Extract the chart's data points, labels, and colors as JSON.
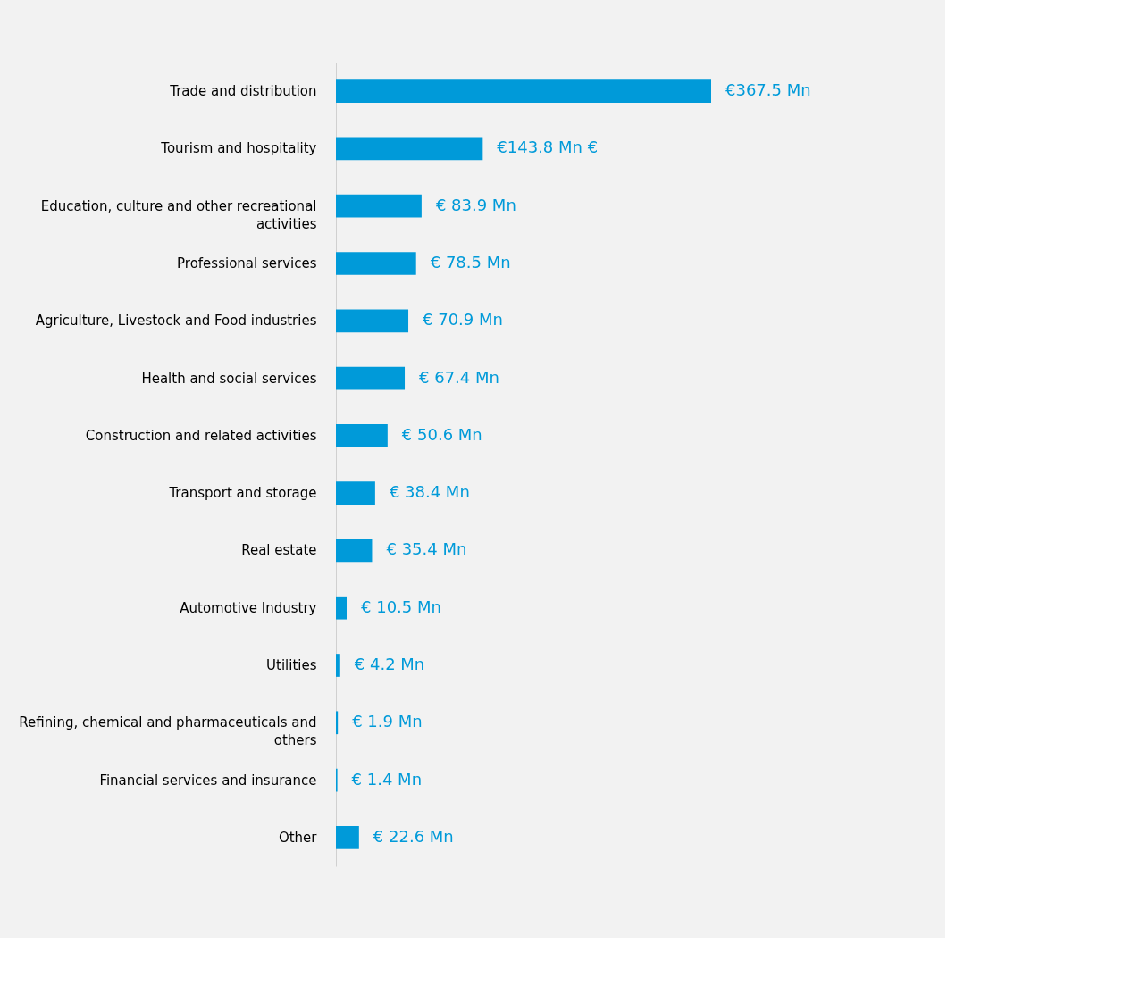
{
  "chart_data": {
    "type": "bar",
    "orientation": "horizontal",
    "color": "#009ad9",
    "categories": [
      "Trade and distribution",
      "Tourism and hospitality",
      "Education, culture and other recreational activities",
      "Professional services",
      "Agriculture, Livestock and Food industries",
      "Health and social services",
      "Construction and related activities",
      "Transport and storage",
      "Real estate",
      "Automotive Industry",
      "Utilities",
      "Refining, chemical and pharmaceuticals and others",
      "Financial services and insurance",
      "Other"
    ],
    "values": [
      367.5,
      143.8,
      83.9,
      78.5,
      70.9,
      67.4,
      50.6,
      38.4,
      35.4,
      10.5,
      4.2,
      1.9,
      1.4,
      22.6
    ],
    "value_labels": [
      "€367.5 Mn",
      "€143.8 Mn €",
      "€ 83.9 Mn",
      "€ 78.5 Mn",
      "€ 70.9 Mn",
      "€ 67.4 Mn",
      "€ 50.6 Mn",
      "€ 38.4 Mn",
      "€  35.4 Mn",
      "€  10.5 Mn",
      "€ 4.2 Mn",
      "€  1.9 Mn",
      "€  1.4 Mn",
      "€  22.6 Mn"
    ]
  }
}
